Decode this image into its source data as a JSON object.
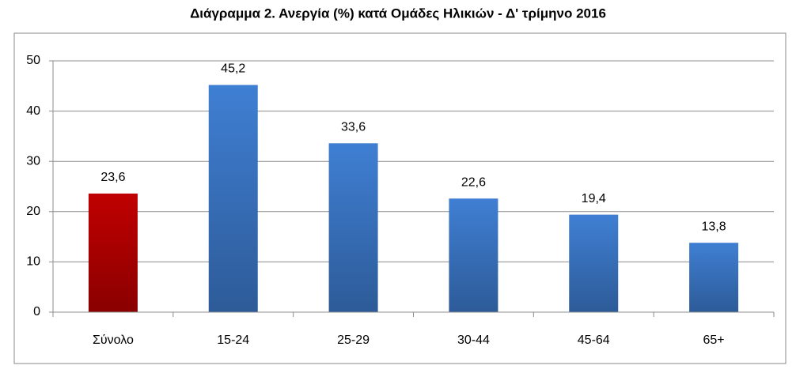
{
  "chart_data": {
    "type": "bar",
    "title": "Διάγραμμα 2. Ανεργία (%) κατά Ομάδες Ηλικιών - Δ' τρίμηνο 2016",
    "categories": [
      "Σύνολο",
      "15-24",
      "25-29",
      "30-44",
      "45-64",
      "65+"
    ],
    "values": [
      23.6,
      45.2,
      33.6,
      22.6,
      19.4,
      13.8
    ],
    "value_labels": [
      "23,6",
      "45,2",
      "33,6",
      "22,6",
      "19,4",
      "13,8"
    ],
    "colors": [
      "#c00000",
      "#3f7fd3",
      "#3f7fd3",
      "#3f7fd3",
      "#3f7fd3",
      "#3f7fd3"
    ],
    "ylim": [
      0,
      50
    ],
    "yticks": [
      0,
      10,
      20,
      30,
      40,
      50
    ],
    "grid": true
  }
}
